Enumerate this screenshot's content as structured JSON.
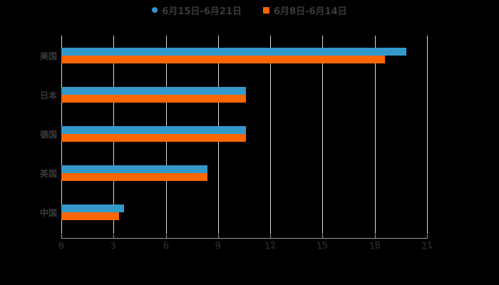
{
  "chart_data": {
    "type": "bar",
    "orientation": "horizontal",
    "title": "",
    "categories": [
      "美国",
      "日本",
      "德国",
      "英国",
      "中国"
    ],
    "series": [
      {
        "name": "6月15日-6月21日",
        "color": "#3399cc",
        "values": [
          19.8,
          10.6,
          10.6,
          8.4,
          3.6
        ]
      },
      {
        "name": "6月8日-6月14日",
        "color": "#ff6600",
        "values": [
          18.6,
          10.6,
          10.6,
          8.4,
          3.3
        ]
      }
    ],
    "xlim": [
      0,
      21
    ],
    "xticks": [
      "0",
      "3",
      "6",
      "9",
      "12",
      "15",
      "18",
      "21"
    ],
    "grid": true,
    "legend_position": "top"
  }
}
